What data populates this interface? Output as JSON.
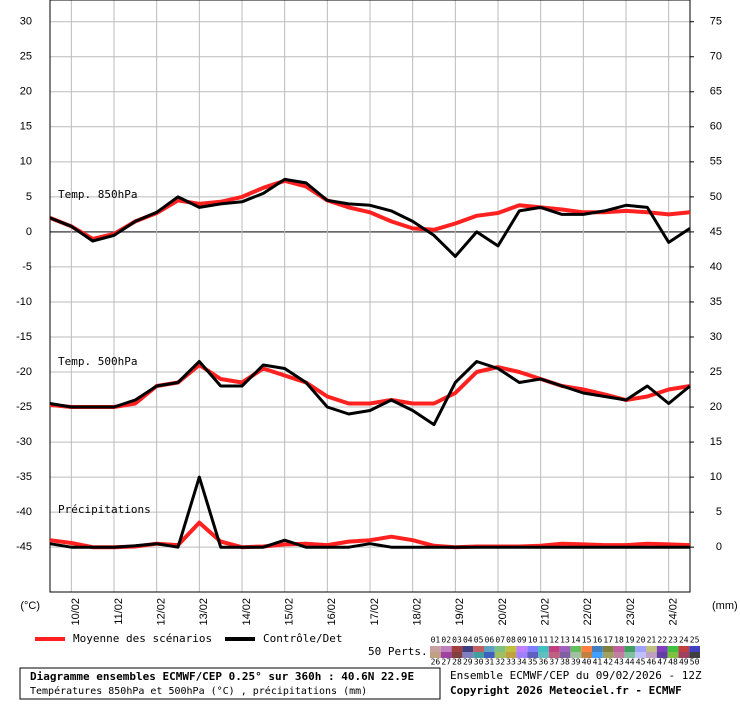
{
  "chart_data": {
    "type": "line",
    "xlim": [
      0,
      360
    ],
    "x": [
      0,
      12,
      24,
      36,
      48,
      60,
      72,
      84,
      96,
      108,
      120,
      132,
      144,
      156,
      168,
      180,
      192,
      204,
      216,
      228,
      240,
      252,
      264,
      276,
      288,
      300,
      312,
      324,
      336,
      348,
      360
    ],
    "xticks": [
      {
        "value": 12,
        "label": "10/02"
      },
      {
        "value": 36,
        "label": "11/02"
      },
      {
        "value": 60,
        "label": "12/02"
      },
      {
        "value": 84,
        "label": "13/02"
      },
      {
        "value": 108,
        "label": "14/02"
      },
      {
        "value": 132,
        "label": "15/02"
      },
      {
        "value": 156,
        "label": "16/02"
      },
      {
        "value": 180,
        "label": "17/02"
      },
      {
        "value": 204,
        "label": "18/02"
      },
      {
        "value": 228,
        "label": "19/02"
      },
      {
        "value": 252,
        "label": "20/02"
      },
      {
        "value": 276,
        "label": "21/02"
      },
      {
        "value": 300,
        "label": "22/02"
      },
      {
        "value": 324,
        "label": "23/02"
      },
      {
        "value": 348,
        "label": "24/02"
      }
    ],
    "ylim": [
      -51.4,
      33.1
    ],
    "yticks": [
      30,
      25,
      20,
      15,
      10,
      5,
      0,
      -5,
      -10,
      -15,
      -20,
      -25,
      -30,
      -35,
      -40,
      -45
    ],
    "ylabel": "(°C)",
    "y2lim": [
      -6.4,
      78.1
    ],
    "y2ticks": [
      75,
      70,
      65,
      60,
      55,
      50,
      45,
      40,
      35,
      30,
      25,
      20,
      15,
      10,
      5,
      0
    ],
    "y2label": "(mm)",
    "grid": true,
    "legend": {
      "mean": {
        "label": "Moyenne des scénarios",
        "color": "#ff2020"
      },
      "control": {
        "label": "Contrôle/Det",
        "color": "#000000"
      }
    },
    "panels": [
      {
        "label": "Temp. 850hPa",
        "axis": "y",
        "mean": [
          2,
          0.8,
          -1,
          -0.3,
          1.5,
          2.7,
          4.5,
          4,
          4.3,
          5,
          6.3,
          7.3,
          6.5,
          4.5,
          3.5,
          2.8,
          1.5,
          0.5,
          0.3,
          1.2,
          2.3,
          2.7,
          3.8,
          3.5,
          3.2,
          2.8,
          2.8,
          3,
          2.8,
          2.5,
          2.8
        ],
        "control": [
          2,
          0.8,
          -1.3,
          -0.5,
          1.5,
          2.8,
          5,
          3.5,
          4,
          4.3,
          5.5,
          7.5,
          7,
          4.5,
          4,
          3.8,
          3,
          1.5,
          -0.5,
          -3.5,
          0,
          -2,
          3,
          3.5,
          2.5,
          2.5,
          3,
          3.8,
          3.5,
          -1.5,
          0.5
        ]
      },
      {
        "label": "Temp. 500hPa",
        "axis": "y",
        "mean": [
          -24.7,
          -25,
          -25,
          -25,
          -24.5,
          -22,
          -21.5,
          -19,
          -21,
          -21.5,
          -19.5,
          -20.5,
          -21.5,
          -23.5,
          -24.5,
          -24.5,
          -24,
          -24.5,
          -24.5,
          -23,
          -20,
          -19.3,
          -20,
          -21,
          -22,
          -22.5,
          -23.2,
          -24,
          -23.5,
          -22.5,
          -22
        ],
        "control": [
          -24.5,
          -25,
          -25,
          -25,
          -24,
          -22,
          -21.5,
          -18.5,
          -22,
          -22,
          -19,
          -19.5,
          -21.5,
          -25,
          -26,
          -25.5,
          -24,
          -25.5,
          -27.5,
          -21.5,
          -18.5,
          -19.5,
          -21.5,
          -21,
          -22,
          -23,
          -23.5,
          -24,
          -22,
          -24.5,
          -22
        ]
      },
      {
        "label": "Précipitations",
        "axis": "y2",
        "mean": [
          1,
          0.6,
          0,
          0,
          0.1,
          0.5,
          0.3,
          3.5,
          0.8,
          0,
          0.1,
          0.4,
          0.5,
          0.3,
          0.8,
          1,
          1.5,
          1,
          0.2,
          0,
          0.1,
          0.1,
          0.1,
          0.2,
          0.5,
          0.4,
          0.3,
          0.3,
          0.5,
          0.4,
          0.3
        ],
        "control": [
          0.5,
          0,
          0,
          0,
          0.2,
          0.5,
          0,
          10,
          0,
          0,
          0,
          1,
          0,
          0,
          0,
          0.5,
          0,
          0,
          0,
          0,
          0,
          0,
          0,
          0,
          0,
          0,
          0,
          0,
          0,
          0,
          0
        ]
      }
    ],
    "perturbations": {
      "label": "50 Perts.",
      "members": [
        "01",
        "02",
        "03",
        "04",
        "05",
        "06",
        "07",
        "08",
        "09",
        "10",
        "11",
        "12",
        "13",
        "14",
        "15",
        "16",
        "17",
        "18",
        "19",
        "20",
        "21",
        "22",
        "23",
        "24",
        "25",
        "26",
        "27",
        "28",
        "29",
        "30",
        "31",
        "32",
        "33",
        "34",
        "35",
        "36",
        "37",
        "38",
        "39",
        "40",
        "41",
        "42",
        "43",
        "44",
        "45",
        "46",
        "47",
        "48",
        "49",
        "50"
      ],
      "colors": [
        "#c8a0a0",
        "#c080c0",
        "#a04040",
        "#404080",
        "#c06060",
        "#60a0c0",
        "#80c080",
        "#c0c040",
        "#c080ff",
        "#8080ff",
        "#40c0c0",
        "#c04080",
        "#a060c0",
        "#60c060",
        "#ff8040",
        "#4080c0",
        "#808040",
        "#c060a0",
        "#40a060",
        "#a0a0ff",
        "#c0c080",
        "#8040c0",
        "#40c040",
        "#c04040",
        "#4040c0",
        "#c0a080",
        "#a040a0",
        "#804040",
        "#8080c0",
        "#40a0a0",
        "#4060c0",
        "#a0c060",
        "#c0a040",
        "#a080ff",
        "#6060c0",
        "#60c0c0",
        "#c06080",
        "#8060a0",
        "#a0c0a0",
        "#c08040",
        "#40a0ff",
        "#a0a060",
        "#c080a0",
        "#80c0a0",
        "#c0c0ff",
        "#c0a0c0",
        "#6040a0",
        "#80c040",
        "#a04060",
        "#404040"
      ]
    },
    "footer": {
      "title": "Diagramme ensembles ECMWF/CEP 0.25° sur 360h : 40.6N 22.9E",
      "subtitle": "Températures 850hPa et 500hPa (°C) , précipitations (mm)",
      "run": "Ensemble ECMWF/CEP du 09/02/2026 - 12Z",
      "copyright": "Copyright 2026 Meteociel.fr - ECMWF"
    }
  }
}
